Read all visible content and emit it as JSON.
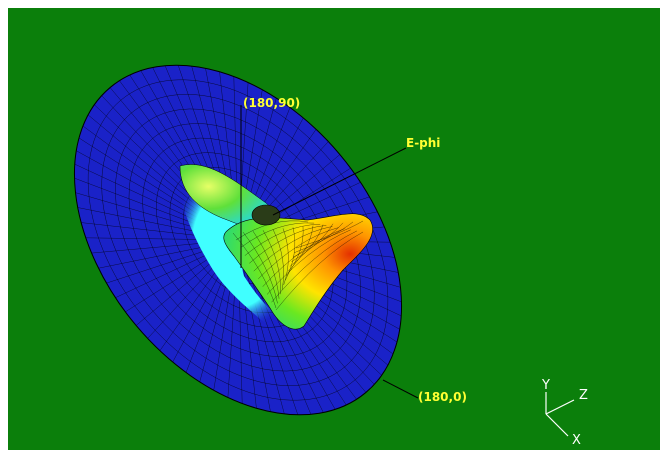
{
  "plot": {
    "background_color": "#0b7f0b",
    "disc_color": "#1a22c8",
    "mesh_color": "#000000",
    "pattern_colormap": [
      "#1a22c8",
      "#18e6ff",
      "#2fe04a",
      "#ffe000",
      "#ff7a00",
      "#e43000"
    ]
  },
  "labels": {
    "top_marker": "(180,90)",
    "component": "E-phi",
    "bottom_marker": "(180,0)",
    "label_color": "#ffff33"
  },
  "triad": {
    "y_label": "Y",
    "z_label": "Z",
    "x_label": "X",
    "color": "#ffffff"
  }
}
